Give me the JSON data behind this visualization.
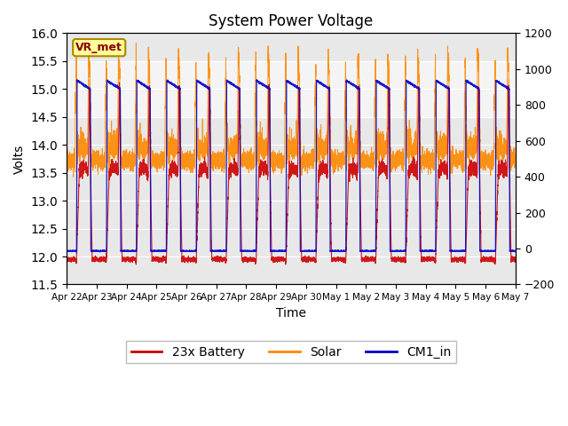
{
  "title": "System Power Voltage",
  "xlabel": "Time",
  "ylabel_left": "Volts",
  "ylim_left": [
    11.5,
    16.0
  ],
  "ylim_right": [
    -200,
    1200
  ],
  "yticks_left": [
    11.5,
    12.0,
    12.5,
    13.0,
    13.5,
    14.0,
    14.5,
    15.0,
    15.5,
    16.0
  ],
  "yticks_right": [
    -200,
    0,
    200,
    400,
    600,
    800,
    1000,
    1200
  ],
  "x_tick_labels": [
    "Apr 22",
    "Apr 23",
    "Apr 24",
    "Apr 25",
    "Apr 26",
    "Apr 27",
    "Apr 28",
    "Apr 29",
    "Apr 30",
    "May 1",
    "May 2",
    "May 3",
    "May 4",
    "May 5",
    "May 6",
    "May 7"
  ],
  "color_battery": "#cc0000",
  "color_solar": "#ff8800",
  "color_cm1": "#0000cc",
  "legend_labels": [
    "23x Battery",
    "Solar",
    "CM1_in"
  ],
  "annotation_text": "VR_met",
  "background_color": "#ffffff",
  "plot_bg_color": "#e8e8e8",
  "shaded_band_lo": 14.5,
  "shaded_band_hi": 15.5
}
